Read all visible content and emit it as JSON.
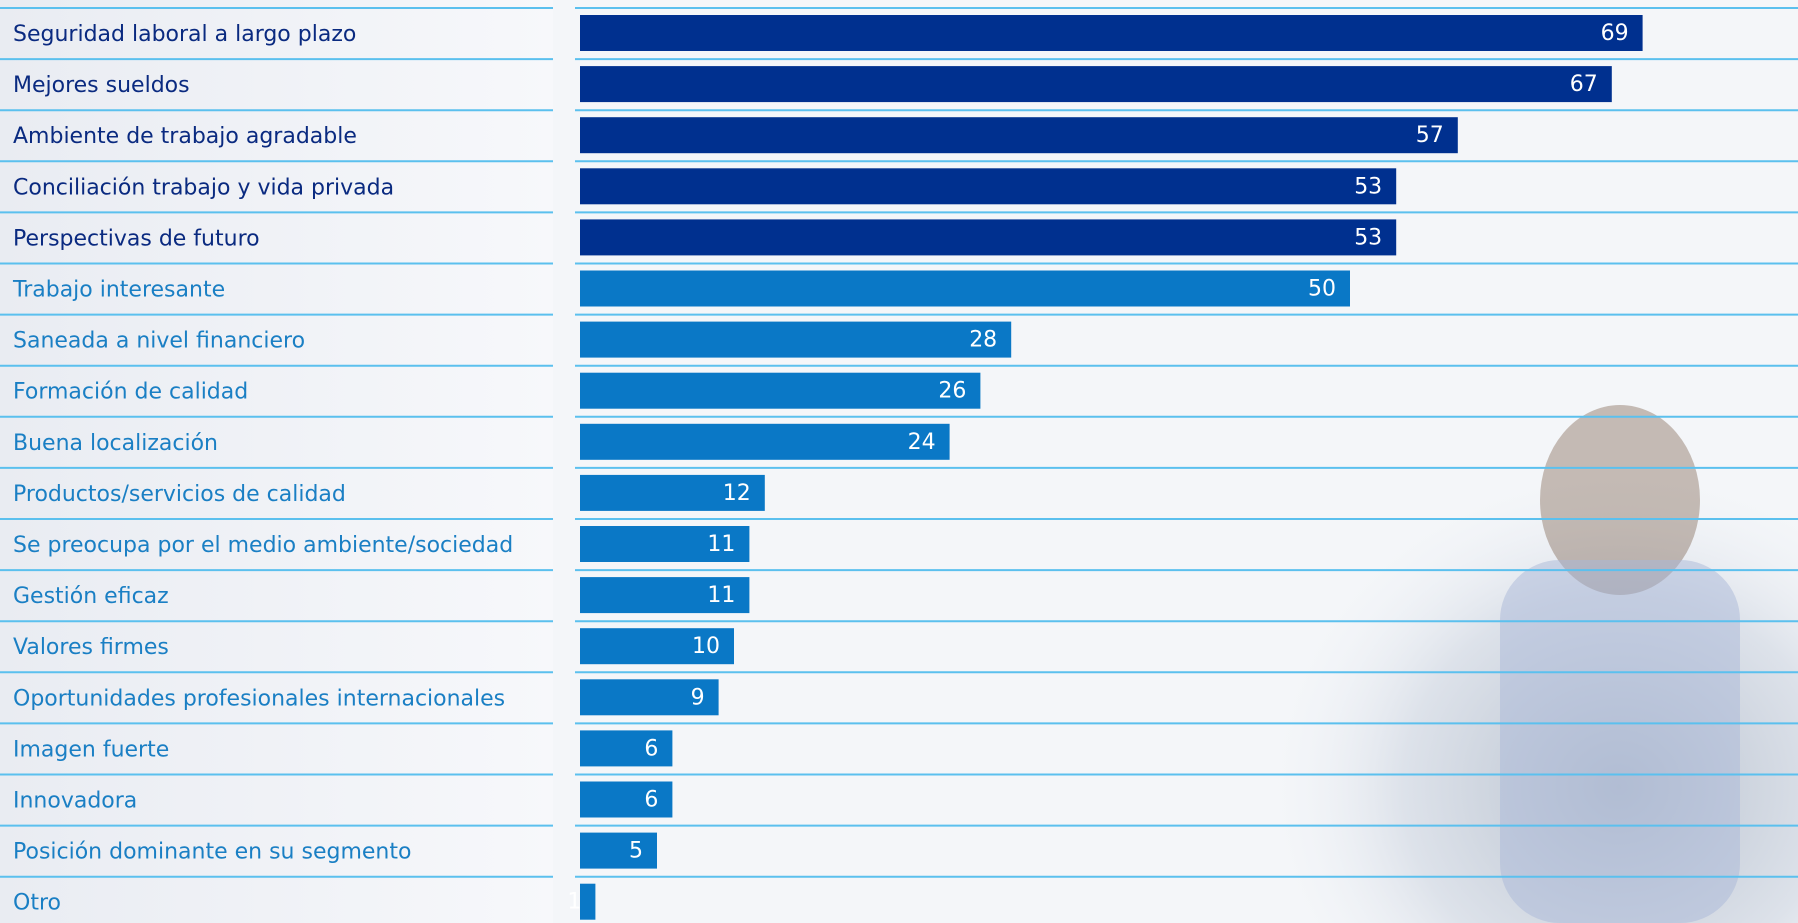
{
  "chart_data": {
    "type": "bar",
    "categories": [
      "Seguridad laboral a largo plazo",
      "Mejores sueldos",
      "Ambiente de trabajo agradable",
      "Conciliación trabajo y vida privada",
      "Perspectivas de futuro",
      "Trabajo interesante",
      "Saneada a nivel financiero",
      "Formación de calidad",
      "Buena localización",
      "Productos/servicios de calidad",
      "Se preocupa por el medio ambiente/sociedad",
      "Gestión eficaz",
      "Valores firmes",
      "Oportunidades profesionales internacionales",
      "Imagen fuerte",
      "Innovadora",
      "Posición dominante en su segmento",
      "Otro"
    ],
    "values": [
      69,
      67,
      57,
      53,
      53,
      50,
      28,
      26,
      24,
      12,
      11,
      11,
      10,
      9,
      6,
      6,
      5,
      1
    ],
    "colors": [
      "#00308f",
      "#00308f",
      "#00308f",
      "#00308f",
      "#00308f",
      "#0a78c6",
      "#0a78c6",
      "#0a78c6",
      "#0a78c6",
      "#0a78c6",
      "#0a78c6",
      "#0a78c6",
      "#0a78c6",
      "#0a78c6",
      "#0a78c6",
      "#0a78c6",
      "#0a78c6",
      "#0a78c6"
    ],
    "label_colors": [
      "#0a2a80",
      "#0a2a80",
      "#0a2a80",
      "#0a2a80",
      "#0a2a80",
      "#1a7fc4",
      "#1a7fc4",
      "#1a7fc4",
      "#1a7fc4",
      "#1a7fc4",
      "#1a7fc4",
      "#1a7fc4",
      "#1a7fc4",
      "#1a7fc4",
      "#1a7fc4",
      "#1a7fc4",
      "#1a7fc4",
      "#1a7fc4"
    ]
  }
}
